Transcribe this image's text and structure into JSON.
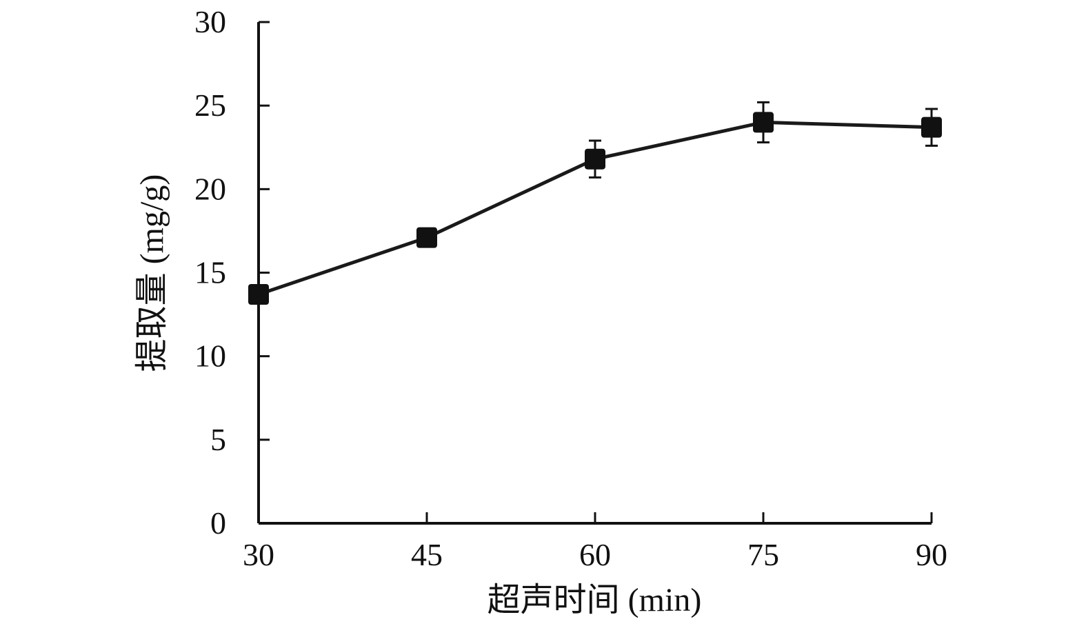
{
  "chart_data": {
    "type": "line",
    "title": "",
    "xlabel": "超声时间 (min)",
    "ylabel": "提取量 (mg/g)",
    "x": [
      30,
      45,
      60,
      75,
      90
    ],
    "x_tick_labels": [
      "30",
      "45",
      "60",
      "75",
      "90"
    ],
    "y_tick_labels": [
      "0",
      "5",
      "10",
      "15",
      "20",
      "25",
      "30"
    ],
    "xlim": [
      30,
      90
    ],
    "ylim": [
      0,
      30
    ],
    "grid": false,
    "series": [
      {
        "values": [
          13.7,
          17.1,
          21.8,
          24.0,
          23.7
        ],
        "error": [
          0.0,
          0.5,
          1.1,
          1.2,
          1.1
        ]
      }
    ],
    "colors": {
      "line": "#1a1a1a",
      "marker": "#111111",
      "axis": "#111111"
    },
    "marker": "square"
  }
}
